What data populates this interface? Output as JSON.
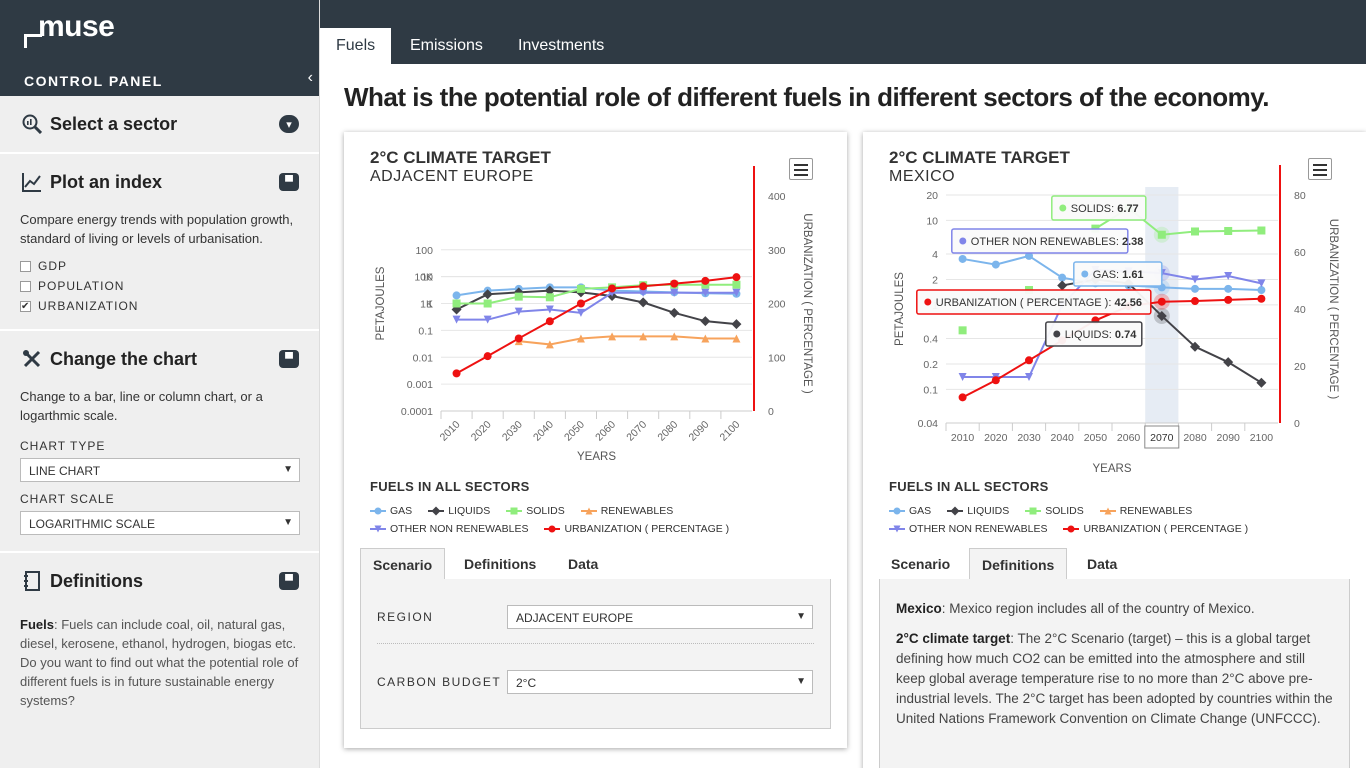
{
  "brand": {
    "logo": "muse",
    "control_panel": "CONTROL PANEL",
    "collapse_icon": "chevron-left-icon"
  },
  "sidebar": {
    "sector": {
      "title": "Select a sector",
      "icon": "search-chart-icon"
    },
    "index": {
      "title": "Plot an index",
      "icon": "line-chart-icon",
      "desc": "Compare energy trends with population growth, standard of living or levels of urbanisation.",
      "options": [
        {
          "label": "GDP",
          "checked": false
        },
        {
          "label": "POPULATION",
          "checked": false
        },
        {
          "label": "URBANIZATION",
          "checked": true
        }
      ]
    },
    "chart": {
      "title": "Change the chart",
      "icon": "tools-icon",
      "desc": "Change to a bar, line or column chart, or a logarthmic scale.",
      "type_label": "CHART TYPE",
      "type_value": "LINE CHART",
      "scale_label": "CHART SCALE",
      "scale_value": "LOGARITHMIC SCALE"
    },
    "definitions": {
      "title": "Definitions",
      "icon": "book-icon",
      "term": "Fuels",
      "text": ": Fuels can include coal, oil, natural gas, diesel, kerosene, ethanol, hydrogen, biogas etc. Do you want to find out what the potential role of different fuels is in future sustainable energy systems?"
    }
  },
  "tabs": [
    "Fuels",
    "Emissions",
    "Investments"
  ],
  "headline": "What is the potential role of different fuels in different sectors of the economy.",
  "left_panel": {
    "title": "2°C CLIMATE TARGET",
    "subtitle": "ADJACENT EUROPE",
    "legend_title": "FUELS IN ALL SECTORS",
    "subtabs": [
      "Scenario",
      "Definitions",
      "Data"
    ],
    "region_label": "REGION",
    "region_value": "ADJACENT EUROPE",
    "budget_label": "CARBON BUDGET",
    "budget_value": "2°C"
  },
  "right_panel": {
    "title": "2°C CLIMATE TARGET",
    "subtitle": "MEXICO",
    "legend_title": "FUELS IN ALL SECTORS",
    "subtabs": [
      "Scenario",
      "Definitions",
      "Data"
    ],
    "def1_term": "Mexico",
    "def1_text": ": Mexico region includes all of the country of Mexico.",
    "def2_term": "2°C climate target",
    "def2_text": ": The 2°C Scenario (target) – this is a global target defining how much CO2 can be emitted into the atmosphere and still keep global average temperature rise to no more than 2°C above pre-industrial levels. The 2°C target has been adopted by countries within the United Nations Framework Convention on Climate Change (UNFCCC)."
  },
  "colors": {
    "GAS": "#7cb5ec",
    "LIQUIDS": "#434348",
    "SOLIDS": "#90ed7d",
    "RENEWABLES": "#f7a35c",
    "OTHER NON RENEWABLES": "#8085e9",
    "URBANIZATION ( PERCENTAGE )": "#ee1111"
  },
  "chart_data": [
    {
      "type": "line",
      "title": "2°C CLIMATE TARGET",
      "subtitle": "ADJACENT EUROPE",
      "xlabel": "YEARS",
      "ylabel": "PETAJOULES",
      "y2label": "URBANIZATION ( PERCENTAGE )",
      "yscale": "log",
      "ylim": [
        0.0001,
        10000
      ],
      "y2lim": [
        0,
        400
      ],
      "yticks": [
        "0.0001",
        "0.001",
        "0.01",
        "0.1",
        "1",
        "10",
        "100",
        "1K",
        "10K"
      ],
      "y2ticks": [
        "0",
        "100",
        "200",
        "300",
        "400"
      ],
      "x": [
        "2010",
        "2020",
        "2030",
        "2040",
        "2050",
        "2060",
        "2070",
        "2080",
        "2090",
        "2100"
      ],
      "series": [
        {
          "name": "GAS",
          "marker": "circle",
          "axis": 0,
          "values": [
            2,
            3,
            3.5,
            4,
            4,
            3,
            2.8,
            2.6,
            2.4,
            2.3
          ]
        },
        {
          "name": "LIQUIDS",
          "marker": "diamond",
          "axis": 0,
          "values": [
            0.6,
            2.2,
            2.6,
            3,
            2.6,
            1.9,
            1.1,
            0.45,
            0.22,
            0.17
          ]
        },
        {
          "name": "SOLIDS",
          "marker": "square",
          "axis": 0,
          "values": [
            1,
            1,
            1.8,
            1.7,
            3.5,
            4,
            4.8,
            5,
            5,
            5
          ]
        },
        {
          "name": "RENEWABLES",
          "marker": "triangle",
          "axis": 0,
          "values": [
            null,
            null,
            0.04,
            0.03,
            0.05,
            0.06,
            0.06,
            0.06,
            0.05,
            0.05
          ]
        },
        {
          "name": "OTHER NON RENEWABLES",
          "marker": "triangle-down",
          "axis": 0,
          "values": [
            0.25,
            0.25,
            0.5,
            0.6,
            0.45,
            2.5,
            2.5,
            2.5,
            2.5,
            2.5
          ]
        },
        {
          "name": "URBANIZATION ( PERCENTAGE )",
          "marker": "circle",
          "axis": 1,
          "values": [
            70,
            102,
            135,
            167,
            200,
            228,
            232,
            237,
            242,
            249
          ]
        }
      ]
    },
    {
      "type": "line",
      "title": "2°C CLIMATE TARGET",
      "subtitle": "MEXICO",
      "xlabel": "YEARS",
      "ylabel": "PETAJOULES",
      "y2label": "URBANIZATION ( PERCENTAGE )",
      "yscale": "log",
      "ylim": [
        0.04,
        20
      ],
      "y2lim": [
        0,
        80
      ],
      "yticks": [
        "0.04",
        "0.1",
        "0.2",
        "0.4",
        "1",
        "2",
        "4",
        "10",
        "20"
      ],
      "y2ticks": [
        "0",
        "20",
        "40",
        "60",
        "80"
      ],
      "x": [
        "2010",
        "2020",
        "2030",
        "2040",
        "2050",
        "2060",
        "2070",
        "2080",
        "2090",
        "2100"
      ],
      "series": [
        {
          "name": "GAS",
          "marker": "circle",
          "axis": 0,
          "values": [
            3.5,
            3,
            3.8,
            2.1,
            1.8,
            1.7,
            1.61,
            1.55,
            1.55,
            1.5
          ]
        },
        {
          "name": "LIQUIDS",
          "marker": "diamond",
          "axis": 0,
          "values": [
            null,
            null,
            null,
            1.7,
            2,
            1.8,
            0.74,
            0.32,
            0.21,
            0.12
          ]
        },
        {
          "name": "SOLIDS",
          "marker": "square",
          "axis": 0,
          "values": [
            0.5,
            null,
            1.5,
            null,
            8,
            14,
            6.77,
            7.4,
            7.5,
            7.6
          ]
        },
        {
          "name": "OTHER NON RENEWABLES",
          "marker": "triangle-down",
          "axis": 0,
          "values": [
            0.14,
            0.14,
            0.14,
            1.0,
            2.6,
            2.5,
            2.38,
            2,
            2.2,
            1.8
          ]
        },
        {
          "name": "URBANIZATION ( PERCENTAGE )",
          "marker": "circle",
          "axis": 1,
          "values": [
            9,
            15,
            22,
            29,
            36,
            41,
            42.56,
            42.8,
            43.2,
            43.6
          ]
        }
      ],
      "highlight": "2070",
      "tooltips": [
        {
          "label": "SOLIDS",
          "value": "6.77"
        },
        {
          "label": "OTHER NON RENEWABLES",
          "value": "2.38"
        },
        {
          "label": "GAS",
          "value": "1.61"
        },
        {
          "label": "URBANIZATION ( PERCENTAGE )",
          "value": "42.56"
        },
        {
          "label": "LIQUIDS",
          "value": "0.74"
        }
      ]
    }
  ]
}
